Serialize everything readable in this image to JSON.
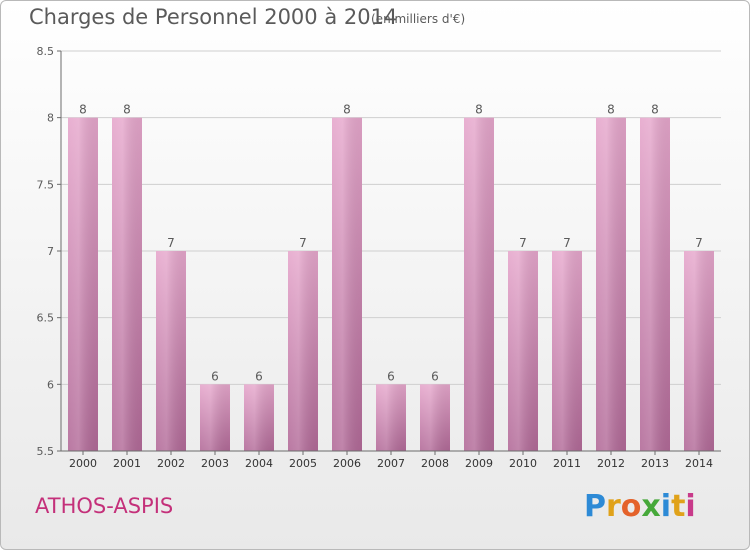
{
  "header": {
    "title": "Charges de Personnel 2000 à 2014",
    "subtitle": "(en milliers d'€)"
  },
  "footer": {
    "town": "ATHOS-ASPIS",
    "brand": "Proxiti",
    "brand_letters": [
      "P",
      "r",
      "o",
      "x",
      "i",
      "t",
      "i"
    ],
    "brand_colors": [
      "#2d8ad6",
      "#e0a21a",
      "#e4622a",
      "#46a83a",
      "#2d8ad6",
      "#e0a21a",
      "#c83a8a"
    ]
  },
  "colors": {
    "bar_top": "#e6a7cc",
    "bar_bottom": "#b26a98",
    "axis": "#6c6c6c",
    "grid": "#cfcfcf",
    "text": "#5a5a5a"
  },
  "chart_data": {
    "type": "bar",
    "categories": [
      "2000",
      "2001",
      "2002",
      "2003",
      "2004",
      "2005",
      "2006",
      "2007",
      "2008",
      "2009",
      "2010",
      "2011",
      "2012",
      "2013",
      "2014"
    ],
    "values": [
      8,
      8,
      7,
      6,
      6,
      7,
      8,
      6,
      6,
      8,
      7,
      7,
      8,
      8,
      7
    ],
    "value_labels": [
      "8",
      "8",
      "7",
      "6",
      "6",
      "7",
      "8",
      "6",
      "6",
      "8",
      "7",
      "7",
      "8",
      "8",
      "7"
    ],
    "yticks": [
      "5.5",
      "6",
      "6.5",
      "7",
      "7.5",
      "8",
      "8.5"
    ],
    "ylim": [
      5.5,
      8.5
    ],
    "grid": true
  }
}
